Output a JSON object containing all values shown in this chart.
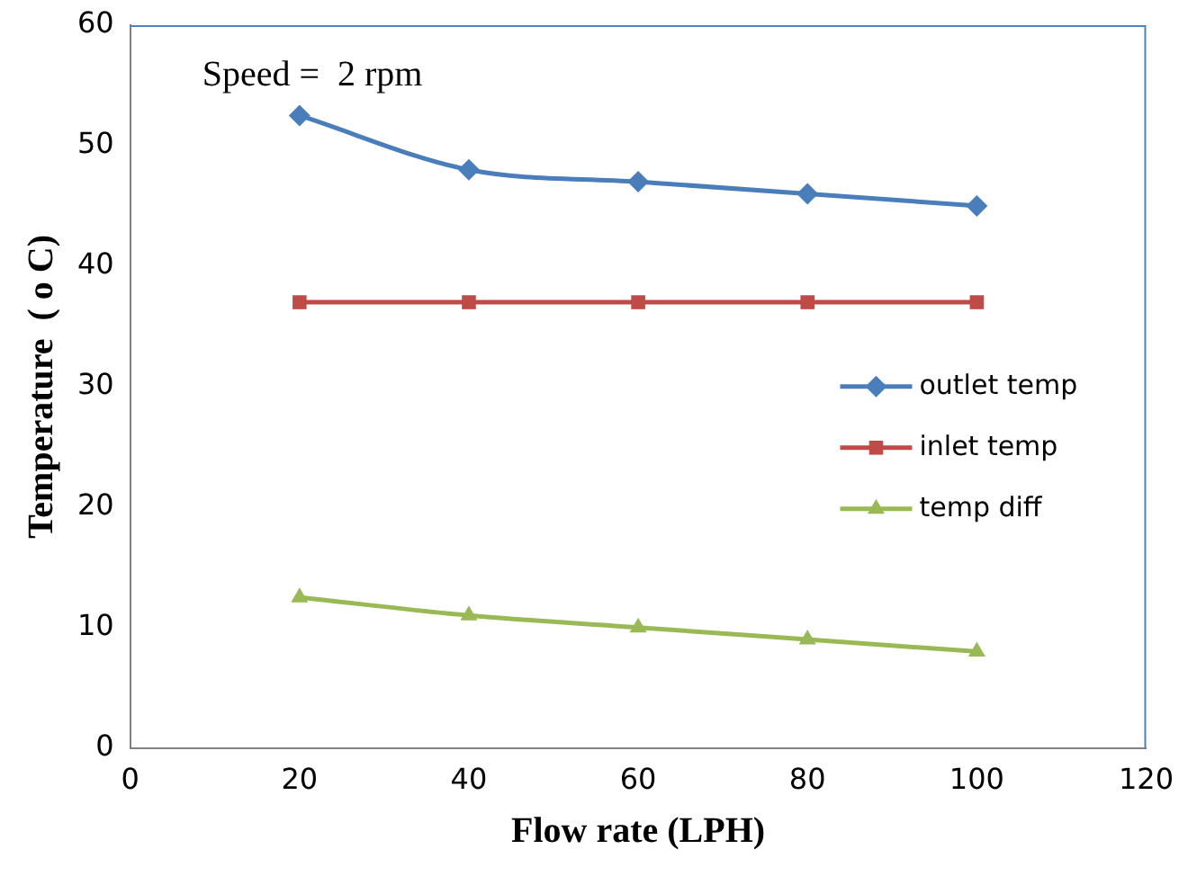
{
  "chart_data": {
    "type": "line",
    "xlabel": "Flow rate (LPH)",
    "ylabel": "Temperature  ( o C)",
    "annotations": [
      "Speed =  2 rpm"
    ],
    "x": [
      20,
      40,
      60,
      80,
      100
    ],
    "series": [
      {
        "name": "outlet temp",
        "color": "#4a7ebb",
        "marker": "diamond",
        "values": [
          52.5,
          48,
          47,
          46,
          45
        ]
      },
      {
        "name": "inlet temp",
        "color": "#be4b48",
        "marker": "square",
        "values": [
          37,
          37,
          37,
          37,
          37
        ]
      },
      {
        "name": "temp diff",
        "color": "#98b954",
        "marker": "triangle",
        "values": [
          12.5,
          11,
          10,
          9,
          8
        ]
      }
    ],
    "xlim": [
      0,
      120
    ],
    "xticks": [
      0,
      20,
      40,
      60,
      80,
      100,
      120
    ],
    "ylim": [
      0,
      60
    ],
    "yticks": [
      0,
      10,
      20,
      30,
      40,
      50,
      60
    ],
    "grid": false,
    "legend": "right"
  }
}
